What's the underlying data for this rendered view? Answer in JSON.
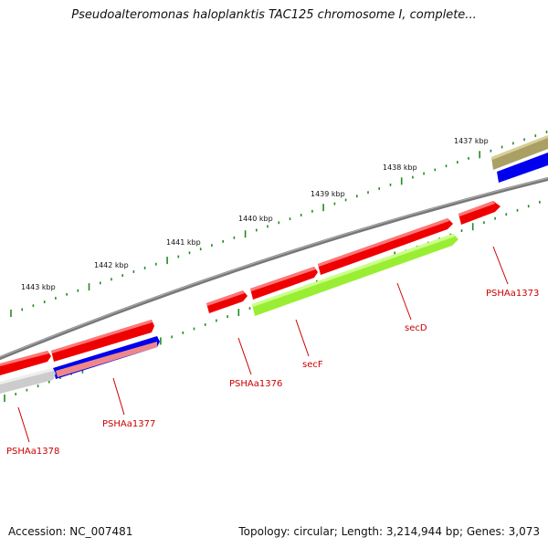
{
  "title": "Pseudoalteromonas haloplanktis TAC125 chromosome I, complete...",
  "footer": {
    "accession": "Accession: NC_007481",
    "topology": "Topology: circular; Length: 3,214,944 bp; Genes: 3,073"
  },
  "scale_labels": [
    "1437 kbp",
    "1438 kbp",
    "1439 kbp",
    "1440 kbp",
    "1441 kbp",
    "1442 kbp",
    "1443 kbp"
  ],
  "gene_labels": [
    "PSHAa1373",
    "secD",
    "secF",
    "PSHAa1376",
    "PSHAa1377",
    "PSHAa1378"
  ],
  "colors": {
    "label": "#cc0000",
    "gene_red": "#ee0000",
    "gene_green": "#99ee33",
    "gene_blue": "#0000ee",
    "gene_olive": "#aaa066",
    "gene_pink": "#ee8888",
    "gene_grey": "#cccccc",
    "backbone": "#888888",
    "ticks": "#228b22"
  }
}
